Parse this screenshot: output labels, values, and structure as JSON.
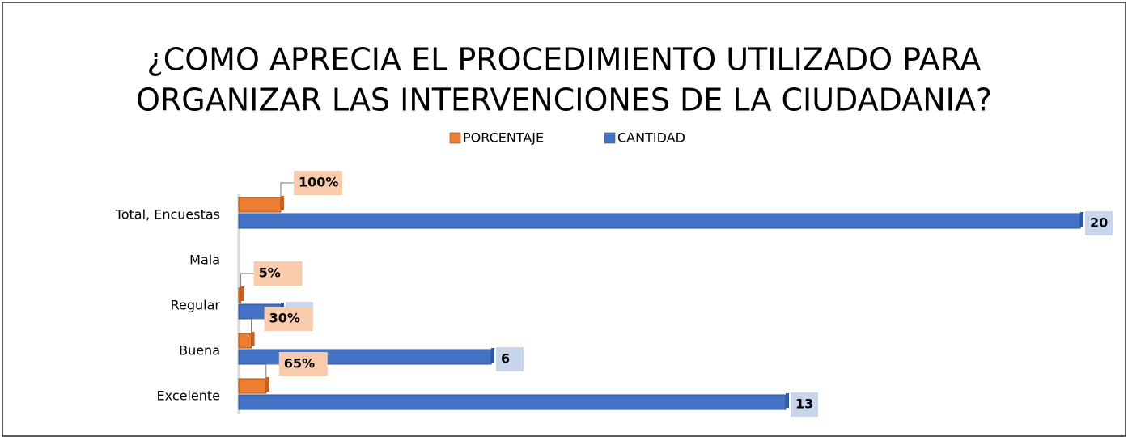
{
  "chart_data": {
    "type": "barh",
    "title": [
      "¿COMO APRECIA EL PROCEDIMIENTO UTILIZADO PARA",
      "ORGANIZAR LAS INTERVENCIONES DE LA CIUDADANIA?"
    ],
    "categories": [
      "Total, Encuestas",
      "Mala",
      "Regular",
      "Buena",
      "Excelente"
    ],
    "series": [
      {
        "name": "PORCENTAJE",
        "color": "#ed7d31",
        "values": [
          1,
          null,
          0.05,
          0.3,
          0.65
        ],
        "value_labels": [
          "100%",
          null,
          "5%",
          "30%",
          "65%"
        ]
      },
      {
        "name": "CANTIDAD",
        "color": "#4472c4",
        "values": [
          20,
          null,
          1,
          6,
          13
        ]
      }
    ],
    "xlim": [
      0,
      20
    ]
  }
}
